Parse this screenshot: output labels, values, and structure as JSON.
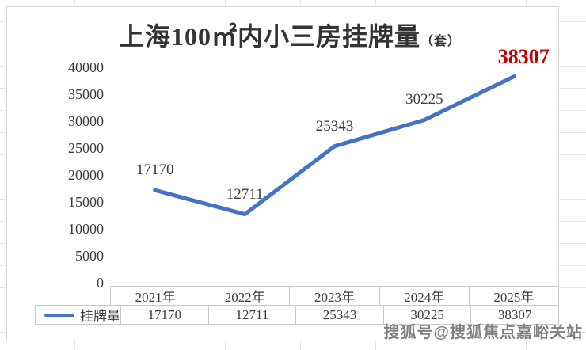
{
  "title": {
    "text": "上海100㎡内小三房挂牌量",
    "unit": "（套）"
  },
  "chart_data": {
    "type": "line",
    "title": "上海100㎡内小三房挂牌量（套）",
    "categories": [
      "2021年",
      "2022年",
      "2023年",
      "2024年",
      "2025年"
    ],
    "series": [
      {
        "name": "挂牌量",
        "values": [
          17170,
          12711,
          25343,
          30225,
          38307
        ]
      }
    ],
    "data_labels": [
      "17170",
      "12711",
      "25343",
      "30225",
      "38307"
    ],
    "highlighted_label_index": 4,
    "ylim": [
      0,
      40000
    ],
    "yticks": [
      0,
      5000,
      10000,
      15000,
      20000,
      25000,
      30000,
      35000,
      40000
    ],
    "grid": false,
    "legend_position": "bottom-table"
  },
  "table": {
    "legend_label": "挂牌量",
    "columns": [
      "2021年",
      "2022年",
      "2023年",
      "2024年",
      "2025年"
    ],
    "values": [
      "17170",
      "12711",
      "25343",
      "30225",
      "38307"
    ]
  },
  "watermark": {
    "text": "搜狐号@搜狐焦点嘉峪关站"
  },
  "colors": {
    "line": "#4472C4",
    "label": "#3c3c3c",
    "highlight_label": "#c00000",
    "table_border": "#c9c9c9",
    "sheet_grid": "#e7e7e7"
  }
}
